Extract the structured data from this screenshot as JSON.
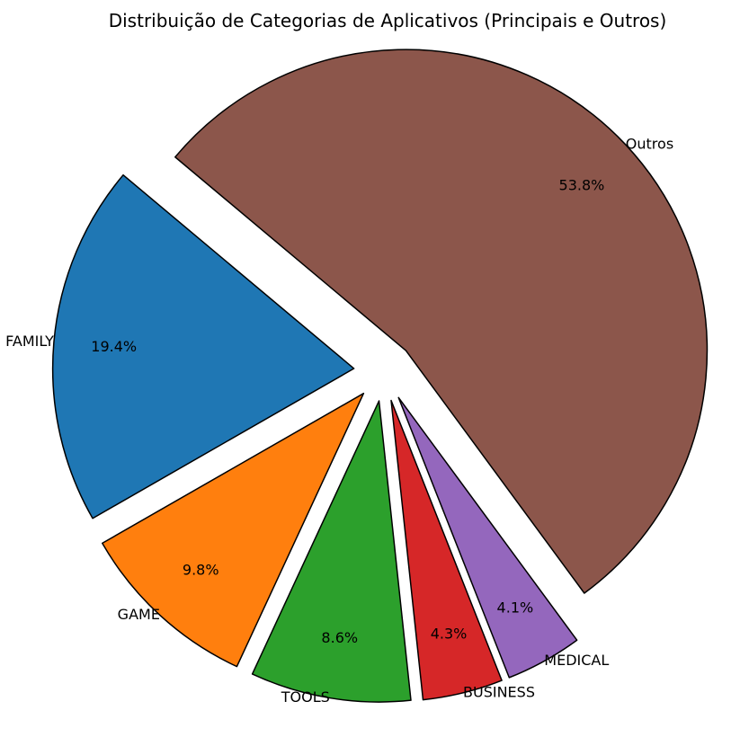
{
  "chart_data": {
    "type": "pie",
    "title": "Distribuição de Categorias de Aplicativos (Principais e Outros)",
    "categories": [
      "FAMILY",
      "GAME",
      "TOOLS",
      "BUSINESS",
      "MEDICAL",
      "Outros"
    ],
    "values": [
      19.4,
      9.8,
      8.6,
      4.3,
      4.1,
      53.8
    ],
    "value_labels": [
      "19.4%",
      "9.8%",
      "8.6%",
      "4.3%",
      "4.1%",
      "53.8%"
    ],
    "colors": [
      "#1f77b4",
      "#ff7f0e",
      "#2ca02c",
      "#d62728",
      "#9467bd",
      "#8c564b"
    ],
    "exploded": [
      true,
      true,
      true,
      true,
      true,
      true
    ],
    "start_angle_deg": 140,
    "direction": "counterclockwise",
    "edge_color": "#000000",
    "legend": "none"
  }
}
